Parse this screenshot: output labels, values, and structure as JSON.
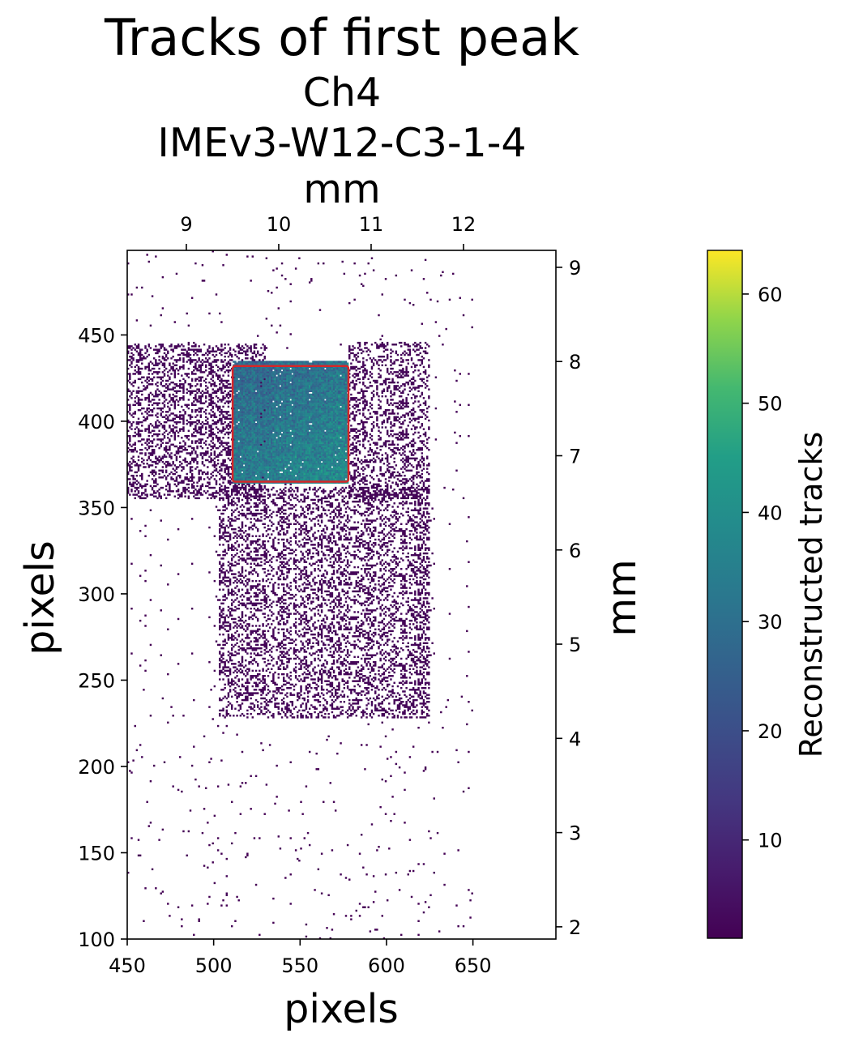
{
  "chart_data": {
    "type": "heatmap",
    "title": "Tracks of first peak",
    "subtitle": [
      "Ch4",
      "IMEv3-W12-C3-1-4"
    ],
    "top_xlabel": "mm",
    "xlabel": "pixels",
    "ylabel": "pixels",
    "right_ylabel": "mm",
    "colorbar_label": "Reconstructed tracks",
    "colormap": "viridis",
    "xlim": [
      450,
      698
    ],
    "ylim": [
      100,
      499
    ],
    "xticks": [
      450,
      500,
      550,
      600,
      650
    ],
    "yticks": [
      100,
      150,
      200,
      250,
      300,
      350,
      400,
      450
    ],
    "top_xlim_mm": [
      8.36,
      13.0
    ],
    "top_xticks_mm": [
      9,
      10,
      11,
      12
    ],
    "right_ylim_mm": [
      1.87,
      9.18
    ],
    "right_yticks_mm": [
      2,
      3,
      4,
      5,
      6,
      7,
      8,
      9
    ],
    "colorbar_range": [
      1,
      64
    ],
    "colorbar_ticks": [
      10,
      20,
      30,
      40,
      50,
      60
    ],
    "regions": [
      {
        "x": [
          511,
          578
        ],
        "y": [
          364,
          435
        ],
        "density": 0.98,
        "mean": 33,
        "spread": 9,
        "gradient_to_lower_right": 12
      },
      {
        "x": [
          450,
          530
        ],
        "y": [
          355,
          445
        ],
        "density": 0.35,
        "mean": 2,
        "spread": 2
      },
      {
        "x": [
          578,
          625
        ],
        "y": [
          355,
          446
        ],
        "density": 0.3,
        "mean": 2,
        "spread": 1
      },
      {
        "x": [
          503,
          625
        ],
        "y": [
          228,
          362
        ],
        "density": 0.3,
        "mean": 2,
        "spread": 1
      },
      {
        "x": [
          450,
          650
        ],
        "y": [
          100,
          499
        ],
        "density": 0.012,
        "mean": 1,
        "spread": 1
      }
    ],
    "highlight_box": {
      "x": [
        511,
        578
      ],
      "y": [
        365,
        432
      ],
      "color": "#d62728"
    }
  }
}
